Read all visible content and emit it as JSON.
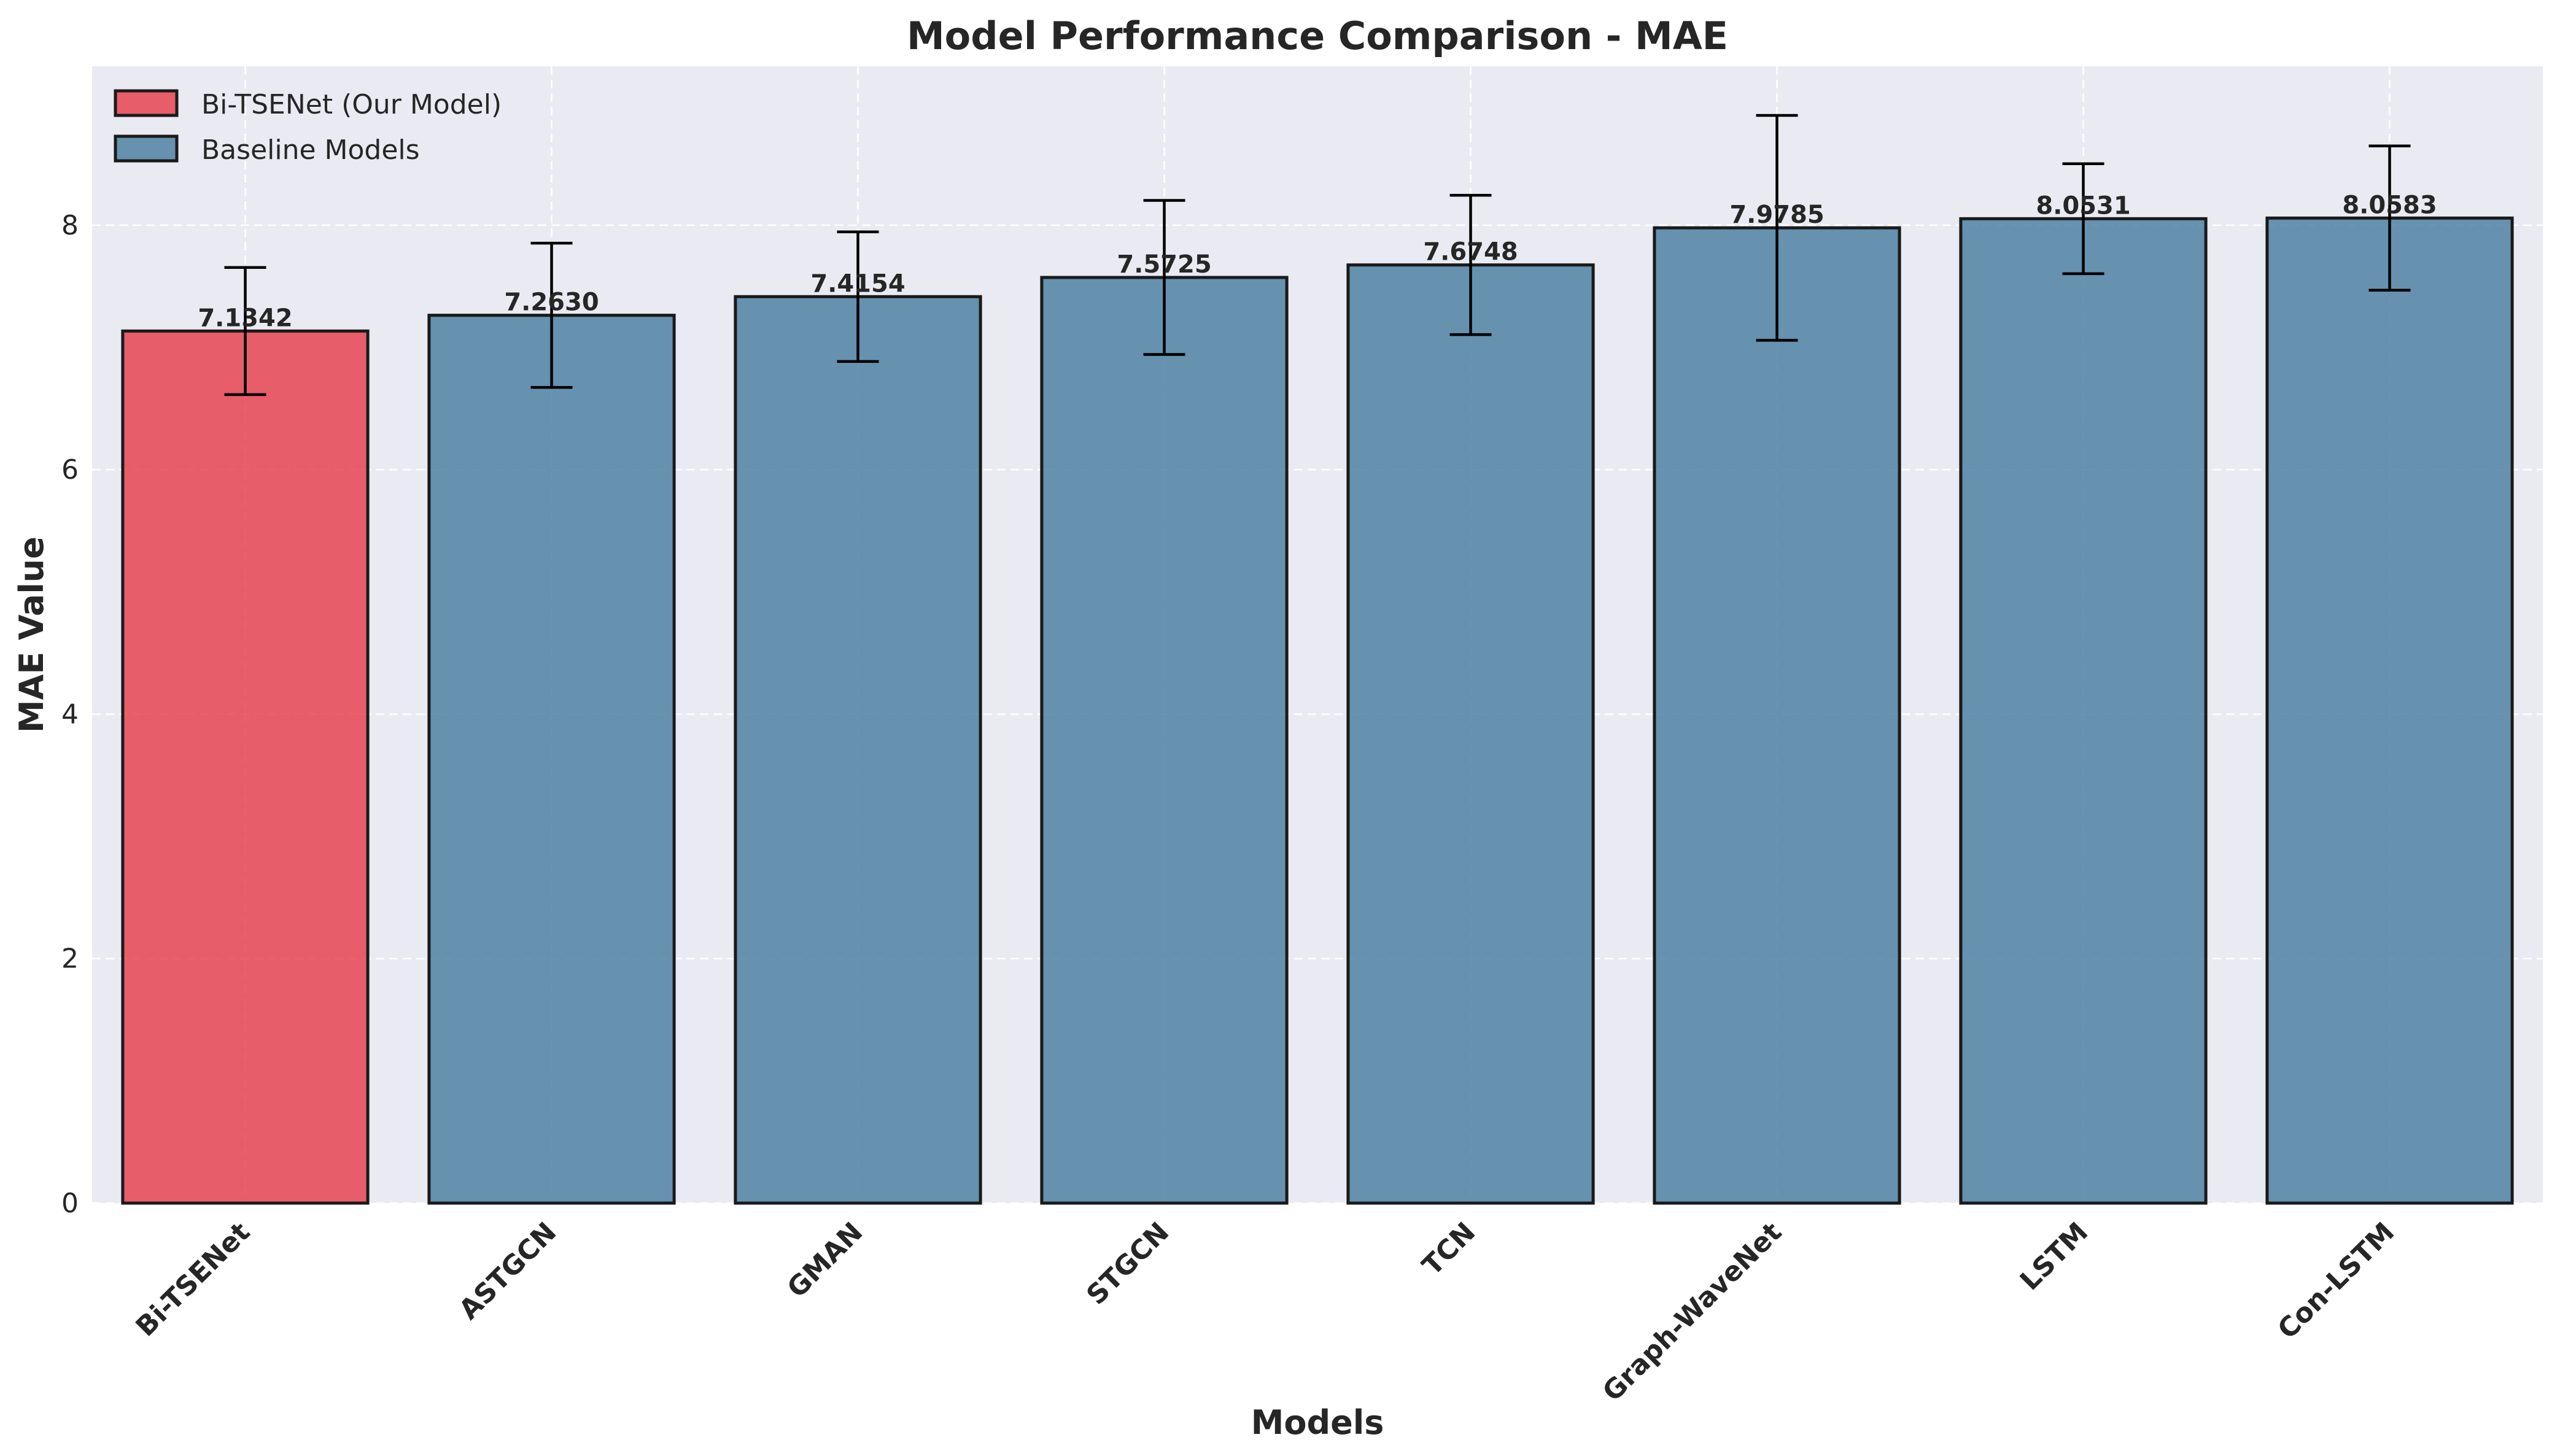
{
  "chart_data": {
    "type": "bar",
    "title": "Model Performance Comparison - MAE",
    "xlabel": "Models",
    "ylabel": "MAE Value",
    "ylim": [
      0,
      9.3
    ],
    "yticks": [
      0,
      2,
      4,
      6,
      8
    ],
    "grid": true,
    "legend_position": "top-left",
    "categories": [
      "Bi-TSENet",
      "ASTGCN",
      "GMAN",
      "STGCN",
      "TCN",
      "Graph-WaveNet",
      "LSTM",
      "Con-LSTM"
    ],
    "values": [
      7.1342,
      7.263,
      7.4154,
      7.5725,
      7.6748,
      7.9785,
      8.0531,
      8.0583
    ],
    "value_labels": [
      "7.1342",
      "7.2630",
      "7.4154",
      "7.5725",
      "7.6748",
      "7.9785",
      "8.0531",
      "8.0583"
    ],
    "error_bars": [
      0.52,
      0.59,
      0.53,
      0.63,
      0.57,
      0.92,
      0.45,
      0.59
    ],
    "groups": [
      "ours",
      "baseline",
      "baseline",
      "baseline",
      "baseline",
      "baseline",
      "baseline",
      "baseline"
    ],
    "legend": [
      {
        "group": "ours",
        "label": "Bi-TSENet (Our Model)",
        "color": "#e63946"
      },
      {
        "group": "baseline",
        "label": "Baseline Models",
        "color": "#457b9d"
      }
    ],
    "colors": {
      "ours": "#e63946",
      "baseline": "#457b9d",
      "plot_background": "#eaeaf2",
      "grid": "#ffffff",
      "edge": "#1a1a1a"
    }
  }
}
